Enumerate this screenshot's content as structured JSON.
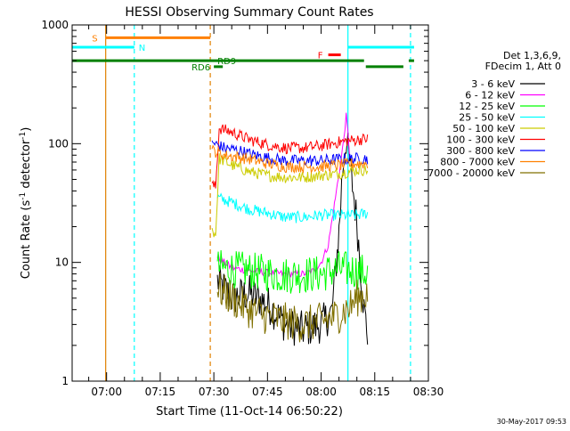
{
  "chart_data": {
    "type": "line",
    "title": "HESSI Observing Summary Count Rates",
    "xlabel": "Start Time (11-Oct-14 06:50:22)",
    "ylabel_parts": [
      "Count Rate (s",
      "-1",
      " detector",
      "-1",
      ")"
    ],
    "y_scale": "log",
    "ylim": [
      1,
      1000
    ],
    "xlim": [
      "06:50:22",
      "08:30"
    ],
    "grid": false,
    "legend_position": "right",
    "legend_header": [
      "Det 1,3,6,9,",
      "FDecim 1, Att 0"
    ],
    "xticks": [
      {
        "t": "07:00",
        "label": "07:00"
      },
      {
        "t": "07:15",
        "label": "07:15"
      },
      {
        "t": "07:30",
        "label": "07:30"
      },
      {
        "t": "07:45",
        "label": "07:45"
      },
      {
        "t": "08:00",
        "label": "08:00"
      },
      {
        "t": "08:15",
        "label": "08:15"
      },
      {
        "t": "08:30",
        "label": "08:30"
      }
    ],
    "yticks": [
      {
        "v": 1,
        "label": "1"
      },
      {
        "v": 10,
        "label": "10"
      },
      {
        "v": 100,
        "label": "100"
      },
      {
        "v": 1000,
        "label": "1000"
      }
    ],
    "series": [
      {
        "name": "3 - 6 keV",
        "color": "#000000",
        "mode": "noisy",
        "points": [
          [
            "07:31",
            7
          ],
          [
            "07:35",
            5
          ],
          [
            "07:40",
            5.5
          ],
          [
            "07:45",
            4.5
          ],
          [
            "07:50",
            3
          ],
          [
            "07:55",
            2.7
          ],
          [
            "08:00",
            3
          ],
          [
            "08:03",
            3.8
          ],
          [
            "08:05",
            18
          ],
          [
            "08:06",
            60
          ],
          [
            "08:07",
            110
          ],
          [
            "08:08",
            70
          ],
          [
            "08:10",
            22
          ],
          [
            "08:12",
            4
          ],
          [
            "08:13",
            2.5
          ]
        ]
      },
      {
        "name": "6 - 12 keV",
        "color": "#ff00ff",
        "mode": "smooth",
        "points": [
          [
            "07:31",
            11
          ],
          [
            "07:35",
            9
          ],
          [
            "07:40",
            8.5
          ],
          [
            "07:45",
            8.2
          ],
          [
            "07:50",
            8
          ],
          [
            "07:55",
            8
          ],
          [
            "07:58",
            8.5
          ],
          [
            "08:00",
            10
          ],
          [
            "08:02",
            14
          ],
          [
            "08:04",
            35
          ],
          [
            "08:06",
            90
          ],
          [
            "08:07",
            170
          ],
          [
            "08:07:30",
            120
          ],
          [
            "08:08",
            80
          ]
        ]
      },
      {
        "name": "12 - 25 keV",
        "color": "#00ff00",
        "mode": "noisy",
        "points": [
          [
            "07:31",
            9
          ],
          [
            "07:40",
            8.5
          ],
          [
            "07:50",
            7.8
          ],
          [
            "08:00",
            8
          ],
          [
            "08:05",
            8.8
          ],
          [
            "08:10",
            8.5
          ],
          [
            "08:13",
            8
          ]
        ]
      },
      {
        "name": "25 - 50 keV",
        "color": "#00ffff",
        "mode": "noisy",
        "points": [
          [
            "07:31",
            35
          ],
          [
            "07:35",
            32
          ],
          [
            "07:40",
            28
          ],
          [
            "07:45",
            26
          ],
          [
            "07:50",
            24
          ],
          [
            "07:55",
            24
          ],
          [
            "08:00",
            25
          ],
          [
            "08:05",
            25
          ],
          [
            "08:10",
            25
          ],
          [
            "08:13",
            26
          ]
        ]
      },
      {
        "name": "50 - 100 keV",
        "color": "#cccc00",
        "mode": "noisy",
        "points": [
          [
            "07:29:30",
            19
          ],
          [
            "07:30:30",
            17
          ],
          [
            "07:31:30",
            75
          ],
          [
            "07:35",
            66
          ],
          [
            "07:40",
            58
          ],
          [
            "07:45",
            54
          ],
          [
            "07:50",
            52
          ],
          [
            "07:55",
            52
          ],
          [
            "08:00",
            54
          ],
          [
            "08:05",
            56
          ],
          [
            "08:10",
            60
          ],
          [
            "08:13",
            60
          ]
        ]
      },
      {
        "name": "100 - 300 keV",
        "color": "#ff0000",
        "mode": "noisy",
        "points": [
          [
            "07:29:30",
            45
          ],
          [
            "07:30:30",
            43
          ],
          [
            "07:31:30",
            135
          ],
          [
            "07:35",
            125
          ],
          [
            "07:40",
            108
          ],
          [
            "07:45",
            98
          ],
          [
            "07:50",
            92
          ],
          [
            "07:55",
            92
          ],
          [
            "08:00",
            96
          ],
          [
            "08:05",
            103
          ],
          [
            "08:10",
            108
          ],
          [
            "08:13",
            110
          ]
        ]
      },
      {
        "name": "300 - 800 keV",
        "color": "#0000ff",
        "mode": "noisy",
        "points": [
          [
            "07:29:30",
            102
          ],
          [
            "07:33",
            92
          ],
          [
            "07:37",
            88
          ],
          [
            "07:40",
            82
          ],
          [
            "07:45",
            76
          ],
          [
            "07:50",
            72
          ],
          [
            "07:55",
            72
          ],
          [
            "08:00",
            72
          ],
          [
            "08:05",
            74
          ],
          [
            "08:10",
            75
          ],
          [
            "08:13",
            75
          ]
        ]
      },
      {
        "name": "800 - 7000 keV",
        "color": "#ff8000",
        "mode": "noisy",
        "points": [
          [
            "07:29:30",
            88
          ],
          [
            "07:33",
            80
          ],
          [
            "07:37",
            77
          ],
          [
            "07:40",
            74
          ],
          [
            "07:45",
            68
          ],
          [
            "07:50",
            64
          ],
          [
            "07:55",
            64
          ],
          [
            "08:00",
            64
          ],
          [
            "08:05",
            66
          ],
          [
            "08:10",
            68
          ],
          [
            "08:13",
            68
          ]
        ]
      },
      {
        "name": "7000 - 20000 keV",
        "color": "#807000",
        "mode": "noisy",
        "points": [
          [
            "07:31",
            6
          ],
          [
            "07:35",
            5
          ],
          [
            "07:40",
            4
          ],
          [
            "07:45",
            3.5
          ],
          [
            "07:50",
            3.2
          ],
          [
            "07:55",
            3
          ],
          [
            "08:00",
            3.2
          ],
          [
            "08:04",
            3.5
          ],
          [
            "08:08",
            4.2
          ],
          [
            "08:10",
            5
          ],
          [
            "08:13",
            5.5
          ]
        ]
      }
    ],
    "vertical_lines": [
      {
        "t": "06:59:45",
        "color": "#e08000",
        "style": "solid"
      },
      {
        "t": "07:07:45",
        "color": "#00ffff",
        "style": "dashed"
      },
      {
        "t": "07:29:00",
        "color": "#e08000",
        "style": "dashed"
      },
      {
        "t": "08:07:30",
        "color": "#00ffff",
        "style": "solid"
      },
      {
        "t": "08:25:00",
        "color": "#00ffff",
        "style": "dashed"
      }
    ],
    "flag_bars": [
      {
        "label": "S",
        "color": "#ff8000",
        "level": 780,
        "t0": "06:59:45",
        "t1": "07:29:00",
        "label_t": "06:57:30",
        "label_side": "left"
      },
      {
        "label": "N",
        "color": "#00ffff",
        "level": 650,
        "t0": "06:50:22",
        "t1": "07:07:45",
        "label_t": "07:09:00",
        "label_side": "right"
      },
      {
        "label": "",
        "color": "#00ffff",
        "level": 650,
        "t0": "08:07:30",
        "t1": "08:26:00",
        "label_t": "",
        "label_side": "right"
      },
      {
        "label": "F",
        "color": "#ff0000",
        "level": 560,
        "t0": "08:02:00",
        "t1": "08:05:30",
        "label_t": "08:00:30",
        "label_side": "left"
      },
      {
        "label": "RD9",
        "color": "#008000",
        "level": 500,
        "t0": "06:50:22",
        "t1": "08:12:00",
        "label_t": "07:31:00",
        "label_side": "right"
      },
      {
        "label": "",
        "color": "#008000",
        "level": 500,
        "t0": "08:24:30",
        "t1": "08:26:00",
        "label_t": "",
        "label_side": "right"
      },
      {
        "label": "RD6",
        "color": "#008000",
        "level": 445,
        "t0": "07:30:00",
        "t1": "07:32:30",
        "label_t": "07:29:00",
        "label_side": "left"
      },
      {
        "label": "",
        "color": "#008000",
        "level": 445,
        "t0": "08:12:30",
        "t1": "08:23:00",
        "label_t": "",
        "label_side": "right"
      }
    ],
    "timestamp": "30-May-2017 09:53"
  }
}
